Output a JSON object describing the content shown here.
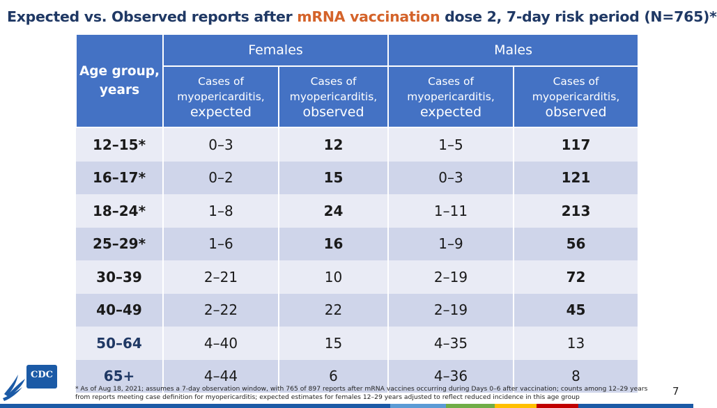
{
  "title": {
    "part1": "Expected vs. Observed reports after ",
    "highlight": "mRNA vaccination",
    "part2": " dose 2, 7-day risk period (N=765)*"
  },
  "table": {
    "age_header_line1": "Age group,",
    "age_header_line2": "years",
    "females_header": "Females",
    "males_header": "Males",
    "sub_headers": [
      {
        "l1": "Cases of",
        "l2": "myopericarditis,",
        "l3": "expected"
      },
      {
        "l1": "Cases of",
        "l2": "myopericarditis,",
        "l3": "observed"
      },
      {
        "l1": "Cases of",
        "l2": "myopericarditis,",
        "l3": "expected"
      },
      {
        "l1": "Cases of",
        "l2": "myopericarditis,",
        "l3": "observed"
      }
    ],
    "rows": [
      {
        "age": "12–15*",
        "f_exp": "0–3",
        "f_obs": "12",
        "m_exp": "1–5",
        "m_obs": "117"
      },
      {
        "age": "16–17*",
        "f_exp": "0–2",
        "f_obs": "15",
        "m_exp": "0–3",
        "m_obs": "121"
      },
      {
        "age": "18–24*",
        "f_exp": "1–8",
        "f_obs": "24",
        "m_exp": "1–11",
        "m_obs": "213"
      },
      {
        "age": "25–29*",
        "f_exp": "1–6",
        "f_obs": "16",
        "m_exp": "1–9",
        "m_obs": "56"
      },
      {
        "age": "30–39",
        "f_exp": "2–21",
        "f_obs": "10",
        "m_exp": "2–19",
        "m_obs": "72"
      },
      {
        "age": "40–49",
        "f_exp": "2–22",
        "f_obs": "22",
        "m_exp": "2–19",
        "m_obs": "45"
      },
      {
        "age": "50–64",
        "f_exp": "4–40",
        "f_obs": "15",
        "m_exp": "4–35",
        "m_obs": "13"
      },
      {
        "age": "65+",
        "f_exp": "4–44",
        "f_obs": "6",
        "m_exp": "4–36",
        "m_obs": "8"
      }
    ]
  },
  "footnote": {
    "line1": "* As of Aug 18, 2021; assumes a 7-day observation window, with 765 of 897 reports after mRNA vaccines occurring during Days 0–6 after vaccination; counts among 12–29 years",
    "line2": "from reports meeting case definition for myopericarditis; expected estimates for females 12–29 years adjusted to reflect reduced incidence in this age group"
  },
  "page_number": "7",
  "logo": {
    "text": "CDC",
    "icon": "hhs-eagle-icon"
  },
  "colors": {
    "header_bg": "#4472c4",
    "title_text": "#1f3864",
    "highlight": "#d4632a",
    "row_odd": "#e9ebf5",
    "row_even": "#cfd5ea"
  }
}
